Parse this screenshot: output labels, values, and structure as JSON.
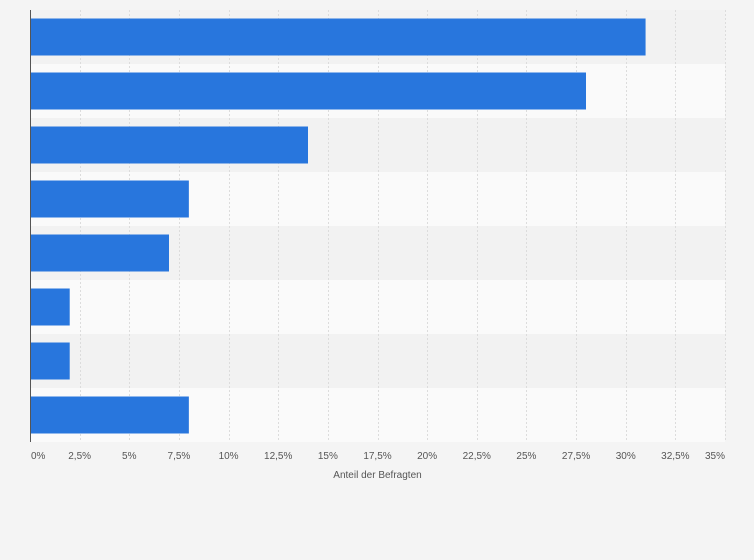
{
  "chart_data": {
    "type": "bar",
    "orientation": "horizontal",
    "categories": [
      "",
      "",
      "",
      "",
      "",
      "",
      "",
      ""
    ],
    "values": [
      31,
      28,
      14,
      8,
      7,
      2,
      2,
      8
    ],
    "title": "",
    "xlabel": "Anteil der Befragten",
    "ylabel": "",
    "xlim": [
      0,
      35
    ],
    "x_ticks": [
      0,
      2.5,
      5,
      7.5,
      10,
      12.5,
      15,
      17.5,
      20,
      22.5,
      25,
      27.5,
      30,
      32.5,
      35
    ],
    "x_tick_labels": [
      "0%",
      "2,5%",
      "5%",
      "7,5%",
      "10%",
      "12,5%",
      "15%",
      "17,5%",
      "20%",
      "22,5%",
      "25%",
      "27,5%",
      "30%",
      "32,5%",
      "35%"
    ],
    "grid": true,
    "legend": "none",
    "colors": {
      "bar": "#2876dd",
      "band_dark": "#f2f2f2",
      "band_light": "#fafafa",
      "grid": "#dcdcdc",
      "axis": "#555555",
      "background": "#f4f4f4"
    }
  }
}
